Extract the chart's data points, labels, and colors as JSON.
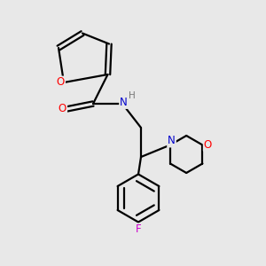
{
  "bg_color": "#e8e8e8",
  "bond_color": "#000000",
  "bond_width": 1.6,
  "atom_colors": {
    "O": "#ff0000",
    "N": "#0000cc",
    "F": "#cc00cc",
    "H": "#777777"
  },
  "font_size": 8.5
}
